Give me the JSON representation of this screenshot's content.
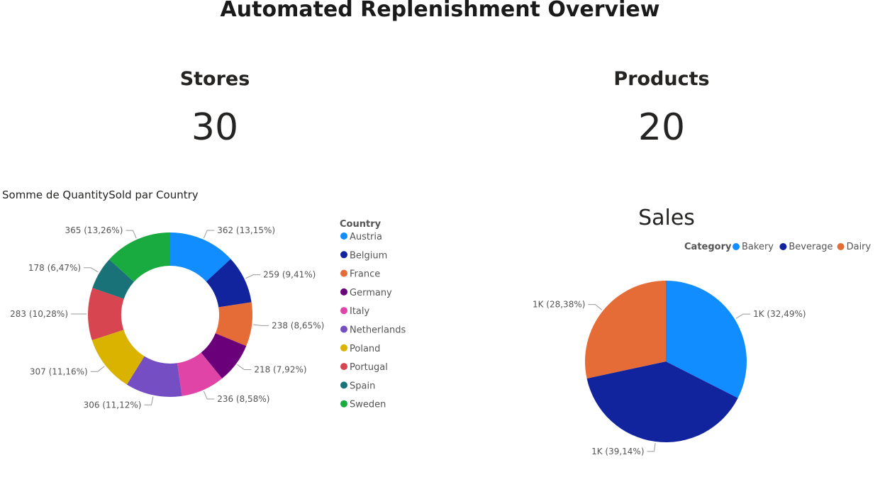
{
  "page": {
    "title": "Automated Replenishment Overview"
  },
  "cards": [
    {
      "title": "Stores",
      "value": "30"
    },
    {
      "title": "Products",
      "value": "20"
    }
  ],
  "chart_data": [
    {
      "type": "pie",
      "variant": "donut",
      "title": "Somme de QuantitySold par Country",
      "legend_title": "Country",
      "legend_position": "right",
      "categories": [
        "Austria",
        "Belgium",
        "France",
        "Germany",
        "Italy",
        "Netherlands",
        "Poland",
        "Portugal",
        "Spain",
        "Sweden"
      ],
      "values": [
        362,
        259,
        238,
        218,
        236,
        306,
        307,
        283,
        178,
        365
      ],
      "labels": [
        "362 (13,15%)",
        "259 (9,41%)",
        "238 (8,65%)",
        "218 (7,92%)",
        "236 (8,58%)",
        "306 (11,12%)",
        "307 (11,16%)",
        "283 (10,28%)",
        "178 (6,47%)",
        "365 (13,26%)"
      ],
      "colors": [
        "#118DFF",
        "#12239E",
        "#E66C37",
        "#6B007B",
        "#E044A7",
        "#744EC2",
        "#D9B300",
        "#D64550",
        "#197278",
        "#1AAB40"
      ]
    },
    {
      "type": "pie",
      "title": "Sales",
      "legend_title": "Category",
      "legend_position": "top-right",
      "categories": [
        "Bakery",
        "Beverage",
        "Dairy"
      ],
      "percentages": [
        32.49,
        39.14,
        28.38
      ],
      "labels": [
        "1K (32,49%)",
        "1K (39,14%)",
        "1K (28,38%)"
      ],
      "colors": [
        "#118DFF",
        "#12239E",
        "#E66C37"
      ]
    }
  ]
}
